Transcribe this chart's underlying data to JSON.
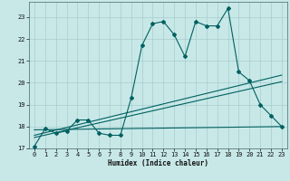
{
  "bg_color": "#c8e8e8",
  "grid_color": "#a8cccc",
  "line_color": "#006060",
  "xlim": [
    -0.5,
    23.5
  ],
  "ylim": [
    17.0,
    23.7
  ],
  "yticks": [
    17,
    18,
    19,
    20,
    21,
    22,
    23
  ],
  "xticks": [
    0,
    1,
    2,
    3,
    4,
    5,
    6,
    7,
    8,
    9,
    10,
    11,
    12,
    13,
    14,
    15,
    16,
    17,
    18,
    19,
    20,
    21,
    22,
    23
  ],
  "xlabel": "Humidex (Indice chaleur)",
  "main_x": [
    0,
    1,
    2,
    3,
    4,
    5,
    6,
    7,
    8,
    9,
    10,
    11,
    12,
    13,
    14,
    15,
    16,
    17,
    18,
    19,
    20,
    21,
    22,
    23
  ],
  "main_y": [
    17.1,
    17.9,
    17.7,
    17.8,
    18.3,
    18.3,
    17.7,
    17.6,
    17.6,
    19.3,
    21.7,
    22.7,
    22.8,
    22.2,
    21.2,
    22.8,
    22.6,
    22.6,
    23.4,
    20.5,
    20.1,
    19.0,
    18.5,
    18.0
  ],
  "trend1_x": [
    0,
    23
  ],
  "trend1_y": [
    17.5,
    20.05
  ],
  "trend2_x": [
    0,
    23
  ],
  "trend2_y": [
    17.6,
    20.35
  ],
  "trend3_x": [
    0,
    23
  ],
  "trend3_y": [
    17.85,
    18.0
  ]
}
